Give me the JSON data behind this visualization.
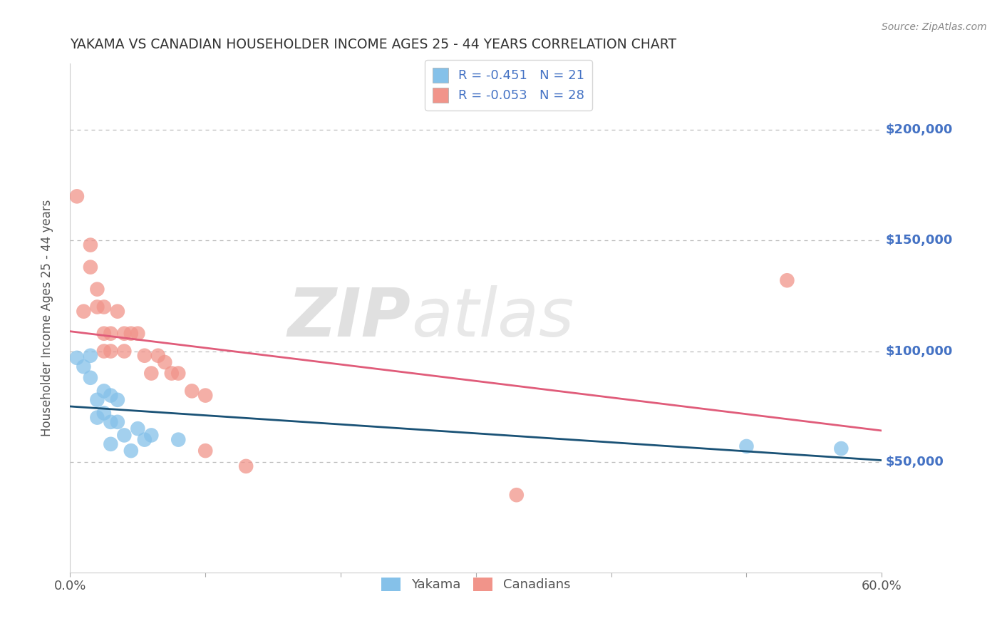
{
  "title": "YAKAMA VS CANADIAN HOUSEHOLDER INCOME AGES 25 - 44 YEARS CORRELATION CHART",
  "source": "Source: ZipAtlas.com",
  "ylabel": "Householder Income Ages 25 - 44 years",
  "xlim": [
    0.0,
    0.6
  ],
  "ylim": [
    0,
    230000
  ],
  "xticks": [
    0.0,
    0.1,
    0.2,
    0.3,
    0.4,
    0.5,
    0.6
  ],
  "xticklabels": [
    "0.0%",
    "",
    "",
    "",
    "",
    "",
    "60.0%"
  ],
  "ytick_positions": [
    50000,
    100000,
    150000,
    200000
  ],
  "ytick_labels": [
    "$50,000",
    "$100,000",
    "$150,000",
    "$200,000"
  ],
  "yakama_color": "#85C1E9",
  "canadian_color": "#F1948A",
  "trend_blue": "#1A5276",
  "trend_pink": "#E05C7A",
  "watermark_zip": "ZIP",
  "watermark_atlas": "atlas",
  "legend_line1": "R = -0.451   N = 21",
  "legend_line2": "R = -0.053   N = 28",
  "yakama_x": [
    0.005,
    0.01,
    0.015,
    0.015,
    0.02,
    0.02,
    0.025,
    0.025,
    0.03,
    0.03,
    0.03,
    0.035,
    0.035,
    0.04,
    0.045,
    0.05,
    0.055,
    0.06,
    0.08,
    0.5,
    0.57
  ],
  "yakama_y": [
    97000,
    93000,
    98000,
    88000,
    78000,
    70000,
    82000,
    72000,
    80000,
    68000,
    58000,
    78000,
    68000,
    62000,
    55000,
    65000,
    60000,
    62000,
    60000,
    57000,
    56000
  ],
  "canadian_x": [
    0.005,
    0.01,
    0.015,
    0.015,
    0.02,
    0.02,
    0.025,
    0.025,
    0.025,
    0.03,
    0.03,
    0.035,
    0.04,
    0.04,
    0.045,
    0.05,
    0.055,
    0.06,
    0.065,
    0.07,
    0.075,
    0.08,
    0.09,
    0.1,
    0.1,
    0.13,
    0.33,
    0.53
  ],
  "canadian_y": [
    170000,
    118000,
    148000,
    138000,
    128000,
    120000,
    120000,
    108000,
    100000,
    108000,
    100000,
    118000,
    108000,
    100000,
    108000,
    108000,
    98000,
    90000,
    98000,
    95000,
    90000,
    90000,
    82000,
    55000,
    80000,
    48000,
    35000,
    132000
  ],
  "background_color": "#FFFFFF",
  "grid_color": "#BBBBBB",
  "title_color": "#333333",
  "axis_label_color": "#555555",
  "ytick_color": "#4472C4",
  "xtick_color": "#555555"
}
